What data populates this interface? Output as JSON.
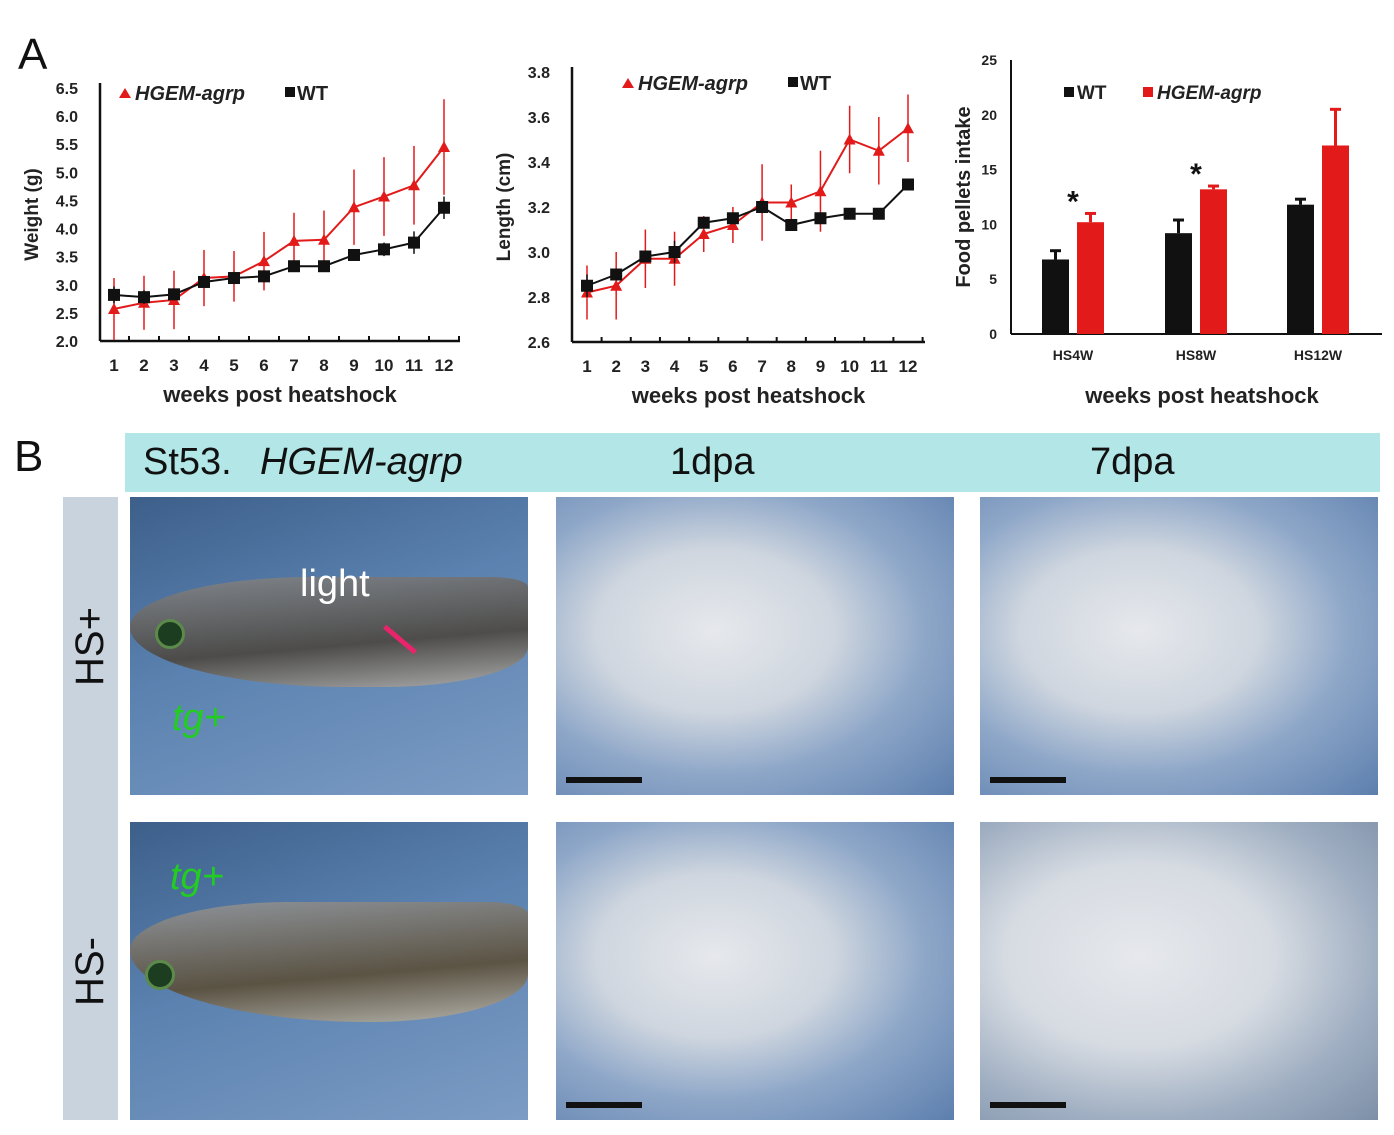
{
  "panels": {
    "a": "A",
    "b": "B"
  },
  "colors": {
    "hgem": "#e21a1a",
    "wt": "#111111",
    "header": "#b3e6e6",
    "side": "#c9d3de"
  },
  "chart_data": [
    {
      "type": "line",
      "title": "",
      "xlabel": "weeks post heatshock",
      "ylabel": "Weight (g)",
      "ylim": [
        2.0,
        6.5
      ],
      "yticks": [
        "2.0",
        "2.5",
        "3.0",
        "3.5",
        "4.0",
        "4.5",
        "5.0",
        "5.5",
        "6.0",
        "6.5"
      ],
      "x": [
        1,
        2,
        3,
        4,
        5,
        6,
        7,
        8,
        9,
        10,
        11,
        12
      ],
      "legend": "top-left",
      "series": [
        {
          "name": "HGEM-agrp",
          "marker": "triangle",
          "values": [
            2.57,
            2.68,
            2.73,
            3.12,
            3.15,
            3.42,
            3.78,
            3.8,
            4.38,
            4.57,
            4.77,
            5.45
          ],
          "errors": [
            0.55,
            0.48,
            0.52,
            0.5,
            0.45,
            0.52,
            0.5,
            0.52,
            0.67,
            0.7,
            0.7,
            0.85
          ]
        },
        {
          "name": "WT",
          "marker": "square",
          "values": [
            2.82,
            2.78,
            2.83,
            3.05,
            3.12,
            3.15,
            3.33,
            3.33,
            3.53,
            3.63,
            3.75,
            4.37
          ],
          "errors": [
            0.15,
            0.12,
            0.1,
            0.08,
            0.05,
            0.05,
            0.03,
            0.03,
            0.08,
            0.12,
            0.2,
            0.2
          ]
        }
      ]
    },
    {
      "type": "line",
      "title": "",
      "xlabel": "weeks post heatshock",
      "ylabel": "Length (cm)",
      "ylim": [
        2.6,
        3.8
      ],
      "yticks": [
        "2.6",
        "2.8",
        "3.0",
        "3.2",
        "3.4",
        "3.6",
        "3.8"
      ],
      "x": [
        1,
        2,
        3,
        4,
        5,
        6,
        7,
        8,
        9,
        10,
        11,
        12
      ],
      "legend": "top-center",
      "series": [
        {
          "name": "HGEM-agrp",
          "marker": "triangle",
          "values": [
            2.82,
            2.85,
            2.97,
            2.97,
            3.08,
            3.12,
            3.22,
            3.22,
            3.27,
            3.5,
            3.45,
            3.55
          ],
          "errors": [
            0.12,
            0.15,
            0.13,
            0.12,
            0.08,
            0.08,
            0.17,
            0.08,
            0.18,
            0.15,
            0.15,
            0.15
          ]
        },
        {
          "name": "WT",
          "marker": "square",
          "values": [
            2.85,
            2.9,
            2.98,
            3.0,
            3.13,
            3.15,
            3.2,
            3.12,
            3.15,
            3.17,
            3.17,
            3.3
          ],
          "errors": [
            0.05,
            0.02,
            0.02,
            0.05,
            0.01,
            0.01,
            0.01,
            0.01,
            0.01,
            0.01,
            0.01,
            0.01
          ]
        }
      ]
    },
    {
      "type": "bar",
      "title": "",
      "xlabel": "weeks post heatshock",
      "ylabel": "Food pellets intake",
      "ylim": [
        0,
        25
      ],
      "yticks": [
        "0",
        "5",
        "10",
        "15",
        "20",
        "25"
      ],
      "categories": [
        "HS4W",
        "HS8W",
        "HS12W"
      ],
      "legend": "top",
      "significance": [
        "*",
        "*",
        ""
      ],
      "series": [
        {
          "name": "WT",
          "values": [
            6.8,
            9.2,
            11.8
          ],
          "errors": [
            0.8,
            1.2,
            0.5
          ]
        },
        {
          "name": "HGEM-agrp",
          "values": [
            10.2,
            13.2,
            17.2
          ],
          "errors": [
            0.8,
            0.3,
            3.3
          ]
        }
      ]
    }
  ],
  "panel_b": {
    "header": {
      "stage": "St53.",
      "line": "HGEM-agrp",
      "col2": "1dpa",
      "col3": "7dpa"
    },
    "rows": [
      "HS+",
      "HS-"
    ],
    "annotations": {
      "light": "light",
      "tg": "tg+"
    }
  }
}
